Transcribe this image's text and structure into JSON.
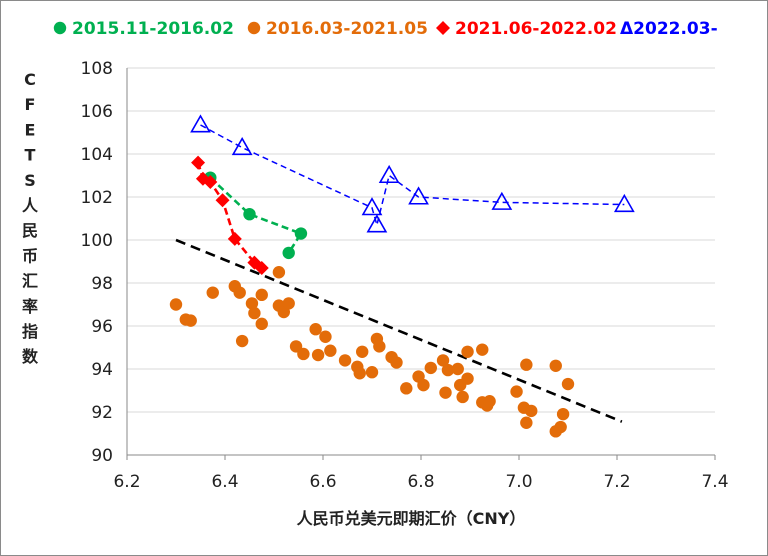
{
  "chart_data": {
    "type": "scatter",
    "title": "",
    "xlabel": "人民币兑美元即期汇价（CNY）",
    "ylabel": "CFETS人民币汇率指数",
    "xlim": [
      6.2,
      7.4
    ],
    "ylim": [
      90,
      108
    ],
    "xticks": [
      "6.2",
      "6.4",
      "6.6",
      "6.8",
      "7.0",
      "7.2",
      "7.4"
    ],
    "yticks": [
      "90",
      "92",
      "94",
      "96",
      "98",
      "100",
      "102",
      "104",
      "106",
      "108"
    ],
    "legend_position": "top",
    "series": [
      {
        "name": "2015.11-2016.02",
        "color": "#00b050",
        "marker": "circle",
        "line": "dashed",
        "points": [
          [
            6.37,
            102.9
          ],
          [
            6.45,
            101.2
          ],
          [
            6.555,
            100.3
          ],
          [
            6.53,
            99.4
          ]
        ]
      },
      {
        "name": "2016.03-2021.05",
        "color": "#e36c09",
        "marker": "circle",
        "line": "none",
        "points": [
          [
            6.3,
            97.0
          ],
          [
            6.32,
            96.3
          ],
          [
            6.33,
            96.25
          ],
          [
            6.375,
            97.55
          ],
          [
            6.42,
            97.85
          ],
          [
            6.43,
            97.55
          ],
          [
            6.435,
            95.3
          ],
          [
            6.455,
            97.05
          ],
          [
            6.46,
            96.6
          ],
          [
            6.475,
            96.1
          ],
          [
            6.475,
            97.45
          ],
          [
            6.51,
            98.5
          ],
          [
            6.51,
            96.95
          ],
          [
            6.52,
            96.65
          ],
          [
            6.53,
            97.05
          ],
          [
            6.545,
            95.05
          ],
          [
            6.56,
            94.7
          ],
          [
            6.585,
            95.85
          ],
          [
            6.59,
            94.65
          ],
          [
            6.605,
            95.5
          ],
          [
            6.615,
            94.85
          ],
          [
            6.645,
            94.4
          ],
          [
            6.67,
            94.1
          ],
          [
            6.675,
            93.8
          ],
          [
            6.68,
            94.8
          ],
          [
            6.7,
            93.85
          ],
          [
            6.71,
            95.4
          ],
          [
            6.715,
            95.05
          ],
          [
            6.74,
            94.55
          ],
          [
            6.75,
            94.3
          ],
          [
            6.77,
            93.1
          ],
          [
            6.795,
            93.65
          ],
          [
            6.805,
            93.25
          ],
          [
            6.82,
            94.05
          ],
          [
            6.845,
            94.4
          ],
          [
            6.85,
            92.9
          ],
          [
            6.855,
            93.95
          ],
          [
            6.875,
            94.0
          ],
          [
            6.88,
            93.25
          ],
          [
            6.885,
            92.7
          ],
          [
            6.895,
            94.8
          ],
          [
            6.895,
            93.55
          ],
          [
            6.925,
            94.9
          ],
          [
            6.925,
            92.45
          ],
          [
            6.935,
            92.3
          ],
          [
            6.94,
            92.5
          ],
          [
            6.995,
            92.95
          ],
          [
            7.01,
            92.2
          ],
          [
            7.015,
            94.2
          ],
          [
            7.015,
            91.5
          ],
          [
            7.025,
            92.05
          ],
          [
            7.075,
            94.15
          ],
          [
            7.075,
            91.1
          ],
          [
            7.085,
            91.3
          ],
          [
            7.09,
            91.9
          ],
          [
            7.1,
            93.3
          ]
        ]
      },
      {
        "name": "2021.06-2022.02",
        "color": "#ff0000",
        "marker": "diamond",
        "line": "dashed",
        "points": [
          [
            6.345,
            103.6
          ],
          [
            6.355,
            102.85
          ],
          [
            6.37,
            102.7
          ],
          [
            6.395,
            101.85
          ],
          [
            6.42,
            100.05
          ],
          [
            6.46,
            98.95
          ],
          [
            6.475,
            98.7
          ]
        ]
      },
      {
        "name": "Δ2022.03-",
        "color": "#0000ff",
        "marker": "triangle",
        "line": "dashed",
        "points": [
          [
            6.35,
            105.35
          ],
          [
            6.435,
            104.3
          ],
          [
            6.7,
            101.5
          ],
          [
            6.71,
            100.7
          ],
          [
            6.735,
            103.0
          ],
          [
            6.795,
            102.0
          ],
          [
            6.965,
            101.75
          ],
          [
            7.215,
            101.65
          ]
        ]
      }
    ],
    "trendline": {
      "color": "#000000",
      "style": "dashed",
      "points": [
        [
          6.3,
          100.0
        ],
        [
          7.21,
          91.55
        ]
      ]
    }
  }
}
